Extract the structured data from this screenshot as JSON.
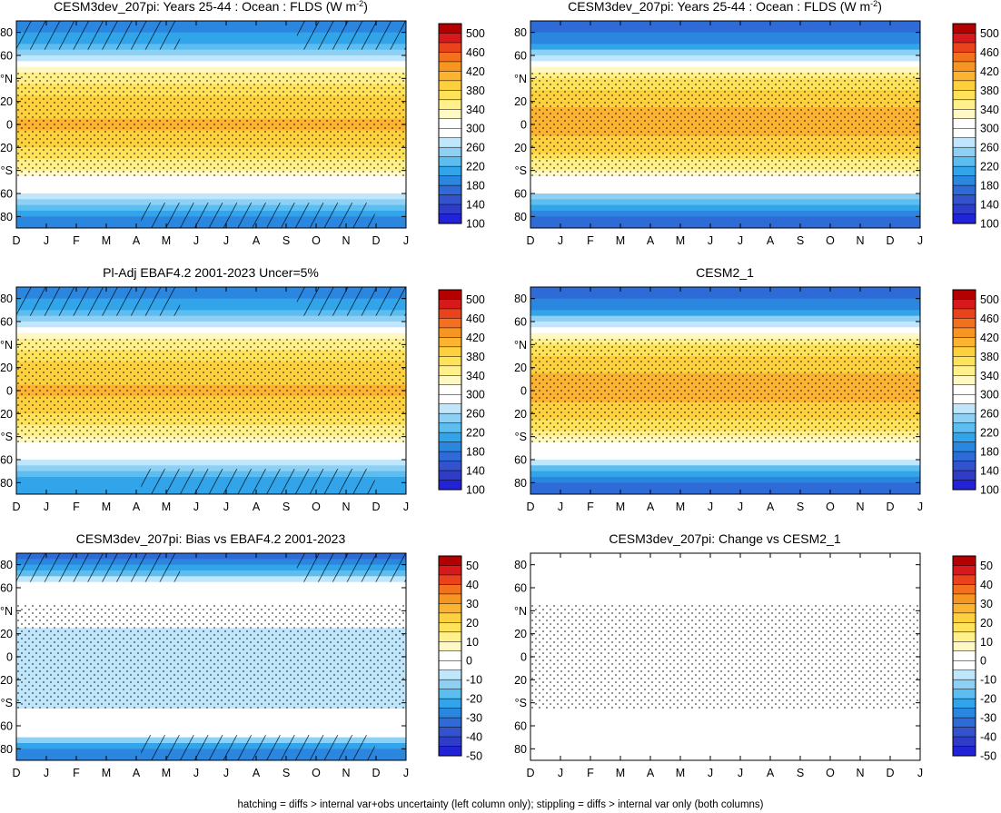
{
  "footer": "hatching = diffs > internal var+obs uncertainty (left column only); stippling = diffs > internal var only (both columns)",
  "months": [
    "D",
    "J",
    "F",
    "M",
    "A",
    "M",
    "J",
    "J",
    "A",
    "S",
    "O",
    "N",
    "D",
    "J"
  ],
  "lat_ticks": [
    "80",
    "60",
    "°N",
    "20",
    "0",
    "20",
    "°S",
    "60",
    "80"
  ],
  "colorbars": {
    "absolute": {
      "labels": [
        "500",
        "460",
        "420",
        "380",
        "340",
        "300",
        "260",
        "220",
        "180",
        "140",
        "100"
      ],
      "colors": [
        "#b40000",
        "#d7191c",
        "#e8431d",
        "#f3711e",
        "#f79522",
        "#fbb331",
        "#fdd03d",
        "#fde25a",
        "#fff08a",
        "#fff8c2",
        "#ffffff",
        "#ffffff",
        "#bfe6fa",
        "#8ed0f4",
        "#5bbdf0",
        "#32a5ea",
        "#2b86df",
        "#2e6bd6",
        "#3353cd",
        "#2f3cc8",
        "#2222d6"
      ]
    },
    "difference": {
      "labels": [
        "50",
        "40",
        "30",
        "20",
        "10",
        "0",
        "-10",
        "-20",
        "-30",
        "-40",
        "-50"
      ],
      "colors": [
        "#b40000",
        "#d7191c",
        "#e8431d",
        "#f3711e",
        "#f79522",
        "#fbb331",
        "#fdd03d",
        "#fde25a",
        "#fff08a",
        "#fff8c2",
        "#ffffff",
        "#ffffff",
        "#bfe6fa",
        "#8ed0f4",
        "#5bbdf0",
        "#32a5ea",
        "#2b86df",
        "#2e6bd6",
        "#3353cd",
        "#2f3cc8",
        "#2222d6"
      ]
    }
  },
  "chart_data": [
    {
      "type": "heatmap",
      "title": "CESM3dev_207pi: Years 25-44 : Ocean : FLDS (W m",
      "title_sup": "-2",
      "title_end": ")",
      "variable": "FLDS",
      "units": "W m-2",
      "x_ticks": [
        "D",
        "J",
        "F",
        "M",
        "A",
        "M",
        "J",
        "J",
        "A",
        "S",
        "O",
        "N",
        "D",
        "J"
      ],
      "y_ticks": [
        "80",
        "60",
        "°N",
        "20",
        "0",
        "20",
        "°S",
        "60",
        "80"
      ],
      "ylim": [
        -90,
        90
      ],
      "colorbar": "absolute",
      "zonal_profile_lat": [
        85,
        70,
        60,
        50,
        40,
        20,
        0,
        -20,
        -40,
        -50,
        -60,
        -70,
        -80
      ],
      "zonal_profile_value": [
        170,
        200,
        250,
        300,
        345,
        380,
        400,
        375,
        330,
        295,
        265,
        215,
        180
      ],
      "hatching": "poles",
      "stippling": "widespread"
    },
    {
      "type": "heatmap",
      "title": "CESM3dev_207pi: Years 25-44 : Ocean : FLDS (W m",
      "title_sup": "-2",
      "title_end": ")",
      "variable": "FLDS",
      "units": "W m-2",
      "x_ticks": [
        "D",
        "J",
        "F",
        "M",
        "A",
        "M",
        "J",
        "J",
        "A",
        "S",
        "O",
        "N",
        "D",
        "J"
      ],
      "y_ticks": [
        "80",
        "60",
        "°N",
        "20",
        "0",
        "20",
        "°S",
        "60",
        "80"
      ],
      "ylim": [
        -90,
        90
      ],
      "colorbar": "absolute",
      "zonal_profile_lat": [
        85,
        70,
        60,
        50,
        40,
        20,
        0,
        -20,
        -40,
        -50,
        -60,
        -70,
        -80
      ],
      "zonal_profile_value": [
        150,
        190,
        245,
        300,
        350,
        390,
        405,
        380,
        335,
        295,
        260,
        205,
        160
      ],
      "stippling": "widespread"
    },
    {
      "type": "heatmap",
      "title": "Pl-Adj EBAF4.2 2001-2023 Uncer=5%",
      "x_ticks": [
        "D",
        "J",
        "F",
        "M",
        "A",
        "M",
        "J",
        "J",
        "A",
        "S",
        "O",
        "N",
        "D",
        "J"
      ],
      "y_ticks": [
        "80",
        "60",
        "°N",
        "20",
        "0",
        "20",
        "°S",
        "60",
        "80"
      ],
      "ylim": [
        -90,
        90
      ],
      "colorbar": "absolute",
      "zonal_profile_lat": [
        85,
        70,
        60,
        50,
        40,
        20,
        0,
        -20,
        -40,
        -50,
        -60,
        -70,
        -80
      ],
      "zonal_profile_value": [
        170,
        205,
        255,
        300,
        345,
        380,
        398,
        372,
        330,
        298,
        270,
        220,
        190
      ],
      "hatching": "poles",
      "stippling": "widespread"
    },
    {
      "type": "heatmap",
      "title": "CESM2_1",
      "x_ticks": [
        "D",
        "J",
        "F",
        "M",
        "A",
        "M",
        "J",
        "J",
        "A",
        "S",
        "O",
        "N",
        "D",
        "J"
      ],
      "y_ticks": [
        "80",
        "60",
        "°N",
        "20",
        "0",
        "20",
        "°S",
        "60",
        "80"
      ],
      "ylim": [
        -90,
        90
      ],
      "colorbar": "absolute",
      "zonal_profile_lat": [
        85,
        70,
        60,
        50,
        40,
        20,
        0,
        -20,
        -40,
        -50,
        -60,
        -70,
        -80
      ],
      "zonal_profile_value": [
        150,
        190,
        245,
        300,
        350,
        392,
        408,
        382,
        336,
        296,
        262,
        205,
        160
      ],
      "stippling": "widespread"
    },
    {
      "type": "heatmap",
      "title": "CESM3dev_207pi: Bias vs EBAF4.2 2001-2023",
      "x_ticks": [
        "D",
        "J",
        "F",
        "M",
        "A",
        "M",
        "J",
        "J",
        "A",
        "S",
        "O",
        "N",
        "D",
        "J"
      ],
      "y_ticks": [
        "80",
        "60",
        "°N",
        "20",
        "0",
        "20",
        "°S",
        "60",
        "80"
      ],
      "ylim": [
        -90,
        90
      ],
      "colorbar": "difference",
      "zonal_profile_lat": [
        85,
        70,
        60,
        50,
        40,
        20,
        0,
        -20,
        -40,
        -50,
        -60,
        -70,
        -80
      ],
      "zonal_profile_value": [
        -35,
        -15,
        0,
        2,
        -3,
        -10,
        -10,
        -10,
        -10,
        -2,
        0,
        -10,
        -30
      ],
      "hatching": "poles",
      "stippling": "widespread"
    },
    {
      "type": "heatmap",
      "title": "CESM3dev_207pi: Change vs CESM2_1",
      "x_ticks": [
        "D",
        "J",
        "F",
        "M",
        "A",
        "M",
        "J",
        "J",
        "A",
        "S",
        "O",
        "N",
        "D",
        "J"
      ],
      "y_ticks": [
        "80",
        "60",
        "°N",
        "20",
        "0",
        "20",
        "°S",
        "60",
        "80"
      ],
      "ylim": [
        -90,
        90
      ],
      "colorbar": "difference",
      "zonal_profile_lat": [
        85,
        70,
        60,
        50,
        40,
        20,
        0,
        -20,
        -40,
        -50,
        -60,
        -70,
        -80
      ],
      "zonal_profile_value": [
        -3,
        0,
        -5,
        0,
        0,
        -5,
        -8,
        -3,
        0,
        -3,
        -2,
        -5,
        0
      ],
      "stippling": "widespread"
    }
  ]
}
